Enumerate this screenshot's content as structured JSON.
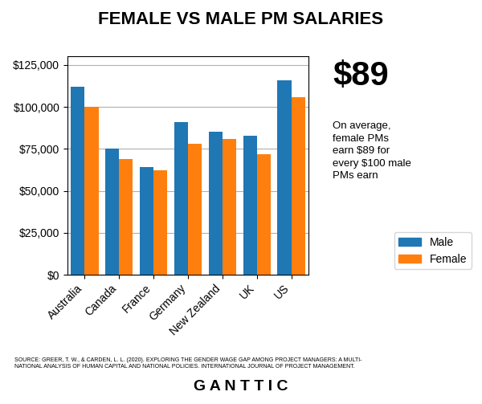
{
  "chart_data": {
    "type": "bar",
    "title": "FEMALE VS MALE PM SALARIES",
    "categories": [
      "Australia",
      "Canada",
      "France",
      "Germany",
      "New Zealand",
      "UK",
      "US"
    ],
    "series": [
      {
        "name": "Male",
        "values": [
          112000,
          75000,
          64000,
          91000,
          85000,
          83000,
          116000
        ]
      },
      {
        "name": "Female",
        "values": [
          100000,
          69000,
          62000,
          78000,
          81000,
          72000,
          106000
        ]
      }
    ],
    "ylim": [
      0,
      130000
    ],
    "yticks": [
      {
        "value": 0,
        "label": "$0"
      },
      {
        "value": 25000,
        "label": "$25,000"
      },
      {
        "value": 50000,
        "label": "$50,000"
      },
      {
        "value": 75000,
        "label": "$75,000"
      },
      {
        "value": 100000,
        "label": "$100,000"
      },
      {
        "value": 125000,
        "label": "$125,000"
      }
    ],
    "grid": true,
    "legend": "lower right",
    "annotations": [
      "$89",
      "On average,\nfemale PMs\nearn $89 for\nevery $100 male\nPMs earn",
      "SOURCE: GREER, T. W., & CARDEN, L. L. (2020). EXPLORING THE GENDER WAGE GAP AMONG PROJECT MANAGERS: A MULTI-\nNATIONAL ANALYSIS OF HUMAN CAPITAL AND NATIONAL POLICIES. INTERNATIONAL JOURNAL OF PROJECT MANAGEMENT.",
      "G A N T T I C"
    ]
  }
}
